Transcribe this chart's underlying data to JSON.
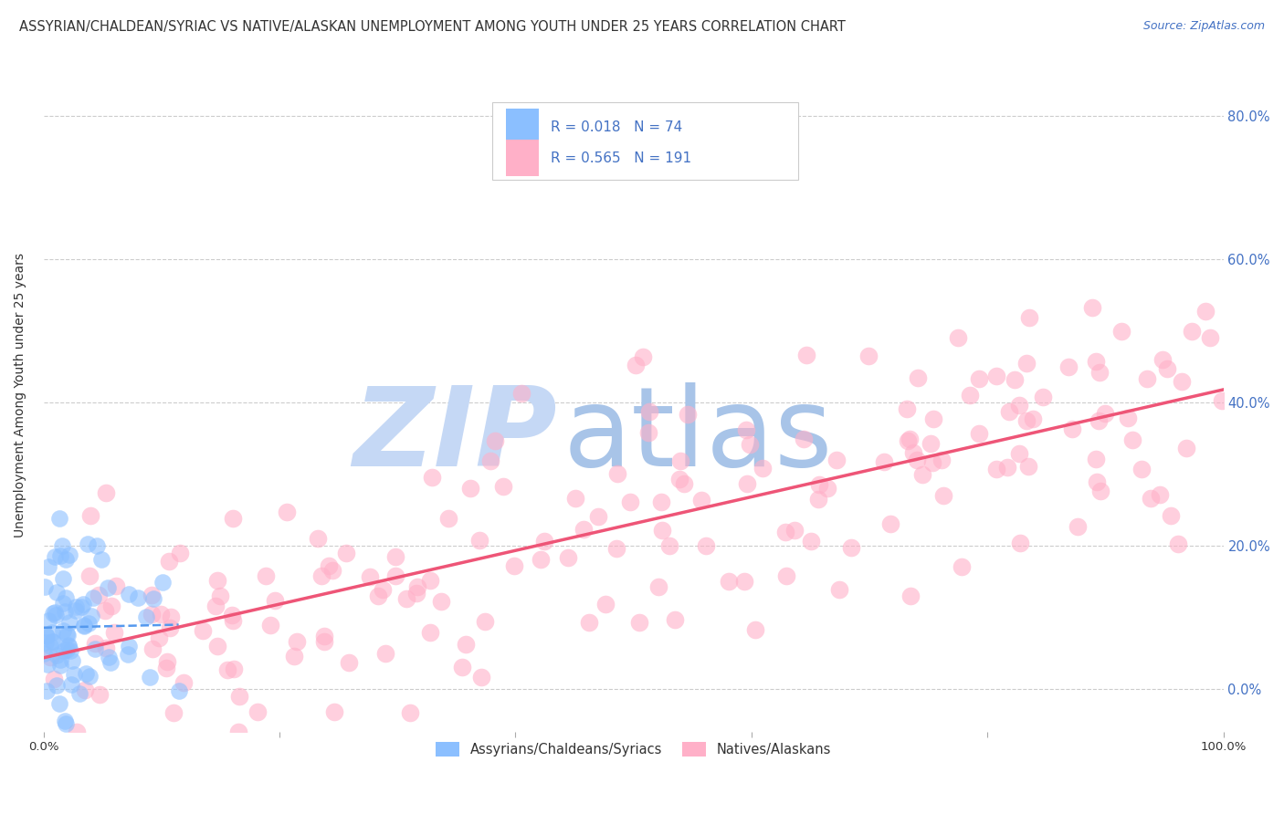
{
  "title": "ASSYRIAN/CHALDEAN/SYRIAC VS NATIVE/ALASKAN UNEMPLOYMENT AMONG YOUTH UNDER 25 YEARS CORRELATION CHART",
  "source": "Source: ZipAtlas.com",
  "ylabel": "Unemployment Among Youth under 25 years",
  "xlim": [
    0,
    1.0
  ],
  "ylim": [
    -0.06,
    0.88
  ],
  "yticks": [
    0.0,
    0.2,
    0.4,
    0.6,
    0.8
  ],
  "ytick_labels": [
    "0.0%",
    "20.0%",
    "40.0%",
    "60.0%",
    "80.0%"
  ],
  "legend_label_1": "Assyrians/Chaldeans/Syriacs",
  "legend_label_2": "Natives/Alaskans",
  "R1": 0.018,
  "N1": 74,
  "R2": 0.565,
  "N2": 191,
  "color_assyrian": "#8BBFFF",
  "color_native": "#FFB0C8",
  "color_line_assyrian": "#5599EE",
  "color_line_native": "#EE5577",
  "background_color": "#FFFFFF",
  "watermark_color_zip": "#C5D8F5",
  "watermark_color_atlas": "#A8C4E8",
  "title_fontsize": 10.5,
  "source_fontsize": 9,
  "axis_label_fontsize": 10,
  "tick_fontsize": 9.5,
  "legend_fontsize": 11
}
